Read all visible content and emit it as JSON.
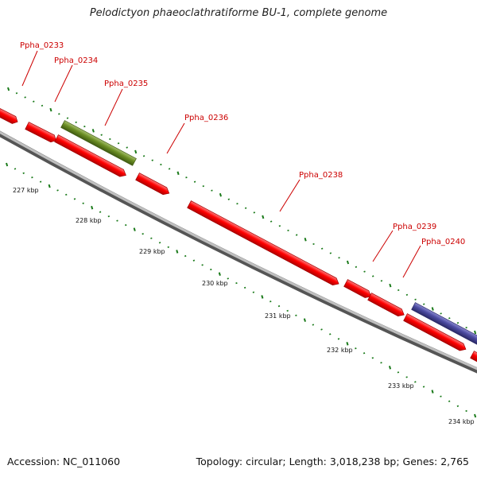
{
  "title": "Pelodictyon phaeoclathratiforme BU-1, complete genome",
  "footer": {
    "accession": "Accession: NC_011060",
    "summary": "Topology: circular; Length: 3,018,238 bp; Genes: 2,765"
  },
  "colors": {
    "gene_default": "#ff0000",
    "gene_green": "#6b8e23",
    "gene_purple": "#4b4aa0",
    "label": "#cc0000",
    "tick": "#1a7a1a",
    "backbone": "#8c8c8c"
  },
  "genes": [
    {
      "name": "",
      "color": "red"
    },
    {
      "name": "",
      "color": "red"
    },
    {
      "name": "",
      "color": "green"
    },
    {
      "name": "",
      "color": "red"
    },
    {
      "name": "",
      "color": "red"
    },
    {
      "name": "",
      "color": "red"
    },
    {
      "name": "",
      "color": "red"
    },
    {
      "name": "",
      "color": "red"
    },
    {
      "name": "",
      "color": "purple"
    },
    {
      "name": "",
      "color": "red"
    },
    {
      "name": "",
      "color": "red"
    }
  ],
  "labels": [
    {
      "text": "Ppha_0233"
    },
    {
      "text": "Ppha_0234"
    },
    {
      "text": "Ppha_0235"
    },
    {
      "text": "Ppha_0236"
    },
    {
      "text": "Ppha_0238"
    },
    {
      "text": "Ppha_0239"
    },
    {
      "text": "Ppha_0240"
    }
  ],
  "scale": [
    "227 kbp",
    "228 kbp",
    "229 kbp",
    "230 kbp",
    "231 kbp",
    "232 kbp",
    "233 kbp",
    "234 kbp"
  ]
}
